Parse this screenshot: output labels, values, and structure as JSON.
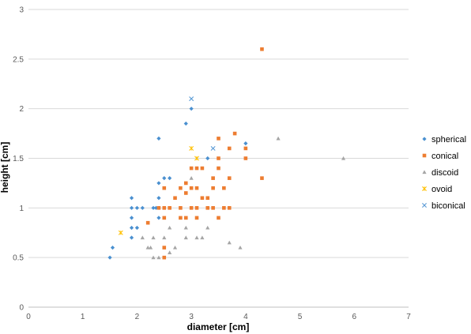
{
  "chart_data": {
    "type": "scatter",
    "xlabel": "diameter [cm]",
    "ylabel": "height [cm]",
    "xlim": [
      0,
      7
    ],
    "ylim": [
      0,
      3
    ],
    "xticks": [
      0,
      1,
      2,
      3,
      4,
      5,
      6,
      7
    ],
    "xtick_labels": [
      "0",
      "1",
      "2",
      "3",
      "4",
      "5",
      "6",
      "7"
    ],
    "yticks": [
      0,
      0.5,
      1,
      1.5,
      2,
      2.5,
      3
    ],
    "ytick_labels": [
      "0",
      "0.5",
      "1",
      "1.5",
      "2",
      "2.5",
      "3"
    ],
    "grid": "horizontal",
    "legend_position": "right",
    "series": [
      {
        "name": "spherical",
        "marker": "diamond",
        "color": "#4A90D0",
        "points": [
          [
            1.5,
            0.5
          ],
          [
            1.55,
            0.6
          ],
          [
            1.9,
            0.7
          ],
          [
            1.9,
            0.8
          ],
          [
            1.9,
            0.9
          ],
          [
            1.9,
            1.0
          ],
          [
            1.9,
            1.1
          ],
          [
            2.0,
            0.8
          ],
          [
            2.0,
            1.0
          ],
          [
            2.1,
            1.0
          ],
          [
            2.3,
            1.0
          ],
          [
            2.35,
            1.0
          ],
          [
            2.4,
            0.9
          ],
          [
            2.4,
            1.1
          ],
          [
            2.4,
            1.25
          ],
          [
            2.4,
            1.7
          ],
          [
            2.5,
            1.3
          ],
          [
            2.6,
            1.3
          ],
          [
            2.9,
            1.85
          ],
          [
            3.0,
            2.0
          ],
          [
            3.3,
            1.5
          ],
          [
            4.0,
            1.65
          ]
        ]
      },
      {
        "name": "conical",
        "marker": "square",
        "color": "#ED7D31",
        "points": [
          [
            2.2,
            0.85
          ],
          [
            2.4,
            1.0
          ],
          [
            2.5,
            0.5
          ],
          [
            2.5,
            0.6
          ],
          [
            2.5,
            0.9
          ],
          [
            2.5,
            1.0
          ],
          [
            2.5,
            1.2
          ],
          [
            2.6,
            1.0
          ],
          [
            2.7,
            1.1
          ],
          [
            2.8,
            0.9
          ],
          [
            2.8,
            1.2
          ],
          [
            2.8,
            1.0
          ],
          [
            2.9,
            1.25
          ],
          [
            2.9,
            0.9
          ],
          [
            2.9,
            1.15
          ],
          [
            3.0,
            1.0
          ],
          [
            3.0,
            1.2
          ],
          [
            3.0,
            1.4
          ],
          [
            3.1,
            1.0
          ],
          [
            3.1,
            1.2
          ],
          [
            3.1,
            1.4
          ],
          [
            3.1,
            0.9
          ],
          [
            3.2,
            1.1
          ],
          [
            3.2,
            1.4
          ],
          [
            3.3,
            1.0
          ],
          [
            3.3,
            1.1
          ],
          [
            3.4,
            1.2
          ],
          [
            3.4,
            1.3
          ],
          [
            3.4,
            1.0
          ],
          [
            3.5,
            1.5
          ],
          [
            3.5,
            1.7
          ],
          [
            3.5,
            1.4
          ],
          [
            3.5,
            0.9
          ],
          [
            3.6,
            1.2
          ],
          [
            3.6,
            1.0
          ],
          [
            3.7,
            1.3
          ],
          [
            3.7,
            1.6
          ],
          [
            3.7,
            1.0
          ],
          [
            3.8,
            1.75
          ],
          [
            4.0,
            1.5
          ],
          [
            4.0,
            1.6
          ],
          [
            4.3,
            1.3
          ],
          [
            4.3,
            2.6
          ]
        ]
      },
      {
        "name": "discoid",
        "marker": "triangle",
        "color": "#A5A5A5",
        "points": [
          [
            2.1,
            0.7
          ],
          [
            2.2,
            0.6
          ],
          [
            2.25,
            0.6
          ],
          [
            2.3,
            0.5
          ],
          [
            2.3,
            0.7
          ],
          [
            2.4,
            0.5
          ],
          [
            2.5,
            0.7
          ],
          [
            2.6,
            0.55
          ],
          [
            2.6,
            0.8
          ],
          [
            2.7,
            0.6
          ],
          [
            2.9,
            0.7
          ],
          [
            2.9,
            0.8
          ],
          [
            3.0,
            1.3
          ],
          [
            3.1,
            0.7
          ],
          [
            3.2,
            0.7
          ],
          [
            3.3,
            0.8
          ],
          [
            3.7,
            0.65
          ],
          [
            3.9,
            0.6
          ],
          [
            4.6,
            1.7
          ],
          [
            5.8,
            1.5
          ]
        ]
      },
      {
        "name": "ovoid",
        "marker": "star",
        "color": "#FFC000",
        "points": [
          [
            1.7,
            0.75
          ],
          [
            3.0,
            1.6
          ],
          [
            3.1,
            1.5
          ]
        ]
      },
      {
        "name": "biconical",
        "marker": "x",
        "color": "#5B9BD5",
        "points": [
          [
            3.0,
            2.1
          ],
          [
            3.4,
            1.6
          ]
        ]
      }
    ]
  }
}
